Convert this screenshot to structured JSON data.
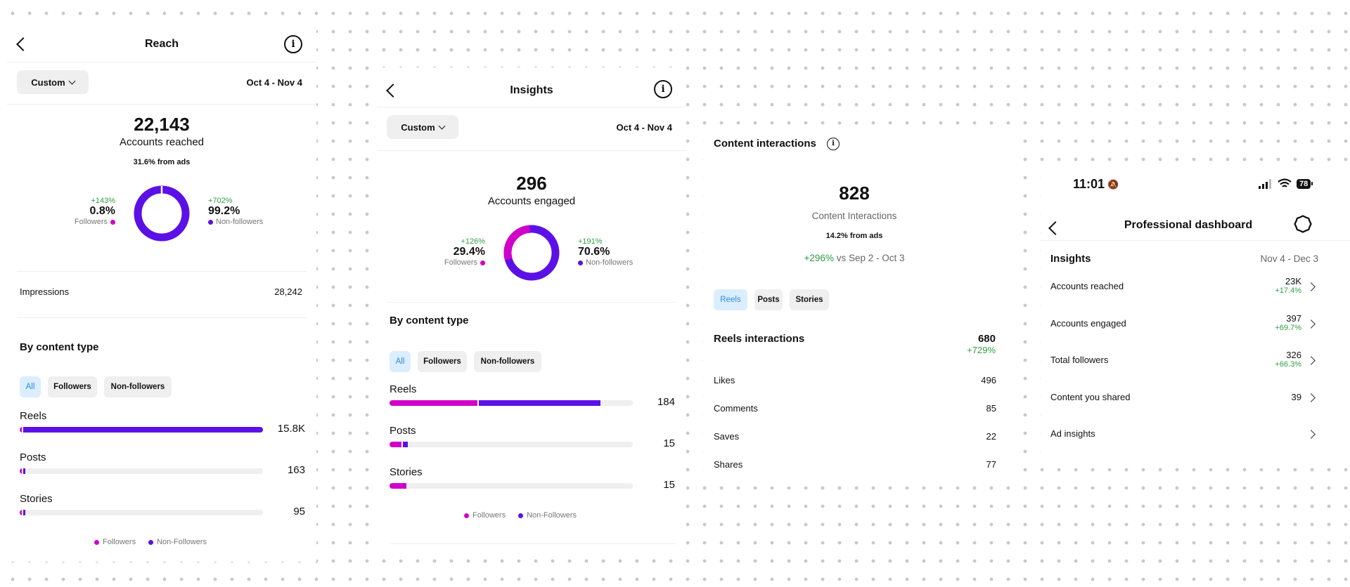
{
  "reach": {
    "title": "Reach",
    "dropdown": "Custom",
    "daterange": "Oct 4 - Nov 4",
    "total": "22,143",
    "subtitle": "Accounts reached",
    "ads_note": "31.6% from ads",
    "followers": {
      "change": "+143%",
      "pct": "0.8%",
      "label": "Followers",
      "value": 0.8
    },
    "nonfollowers": {
      "change": "+702%",
      "pct": "99.2%",
      "label": "Non-followers",
      "value": 99.2
    },
    "impressions_label": "Impressions",
    "impressions_value": "28,242",
    "by_content_title": "By content type",
    "filters": [
      "All",
      "Followers",
      "Non-followers"
    ],
    "bars": [
      {
        "label": "Reels",
        "value": "15.8K",
        "followers_frac": 0.01,
        "nonfollowers_frac": 0.99,
        "total_frac": 1.0
      },
      {
        "label": "Posts",
        "value": "163",
        "followers_frac": 0.005,
        "nonfollowers_frac": 0.005,
        "total_frac": 0.012
      },
      {
        "label": "Stories",
        "value": "95",
        "followers_frac": 0.004,
        "nonfollowers_frac": 0.004,
        "total_frac": 0.008
      }
    ],
    "legend": [
      "Followers",
      "Non-Followers"
    ]
  },
  "insights": {
    "title": "Insights",
    "dropdown": "Custom",
    "daterange": "Oct 4 - Nov 4",
    "total": "296",
    "subtitle": "Accounts engaged",
    "followers": {
      "change": "+126%",
      "pct": "29.4%",
      "label": "Followers",
      "value": 29.4
    },
    "nonfollowers": {
      "change": "+191%",
      "pct": "70.6%",
      "label": "Non-followers",
      "value": 70.6
    },
    "by_content_title": "By content type",
    "filters": [
      "All",
      "Followers",
      "Non-followers"
    ],
    "bars": [
      {
        "label": "Reels",
        "value": "184",
        "followers_frac": 0.36,
        "nonfollowers_frac": 0.5,
        "total_frac": 0.86
      },
      {
        "label": "Posts",
        "value": "15",
        "followers_frac": 0.05,
        "nonfollowers_frac": 0.02,
        "total_frac": 0.07
      },
      {
        "label": "Stories",
        "value": "15",
        "followers_frac": 0.07,
        "nonfollowers_frac": 0.0,
        "total_frac": 0.07
      }
    ],
    "legend": [
      "Followers",
      "Non-Followers"
    ]
  },
  "content": {
    "title": "Content interactions",
    "total": "828",
    "subtitle": "Content Interactions",
    "ads_note": "14.2% from ads",
    "compare_change": "+296%",
    "compare_text": "vs Sep 2 - Oct 3",
    "tabs": [
      "Reels",
      "Posts",
      "Stories"
    ],
    "reels_title": "Reels interactions",
    "reels_total": "680",
    "reels_change": "+729%",
    "rows": [
      {
        "label": "Likes",
        "value": "496"
      },
      {
        "label": "Comments",
        "value": "85"
      },
      {
        "label": "Saves",
        "value": "22"
      },
      {
        "label": "Shares",
        "value": "77"
      }
    ]
  },
  "dashboard": {
    "time": "11:01",
    "battery": "78",
    "title": "Professional dashboard",
    "insights_label": "Insights",
    "daterange": "Nov 4 - Dec 3",
    "rows": [
      {
        "label": "Accounts reached",
        "value": "23K",
        "change": "+17.4%"
      },
      {
        "label": "Accounts engaged",
        "value": "397",
        "change": "+69.7%"
      },
      {
        "label": "Total followers",
        "value": "326",
        "change": "+66.3%"
      },
      {
        "label": "Content you shared",
        "value": "39",
        "change": ""
      },
      {
        "label": "Ad insights",
        "value": "",
        "change": ""
      }
    ]
  },
  "colors": {
    "followers": "#d100c9",
    "nonfollowers": "#5b11e5",
    "positive": "#2f9e44",
    "active_tab": "#2d87e2"
  }
}
